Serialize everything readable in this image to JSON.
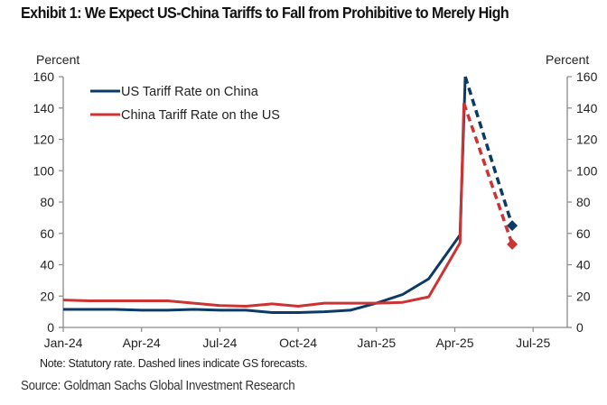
{
  "title": "Exhibit 1: We Expect US-China Tariffs to Fall from Prohibitive to Merely High",
  "note": "Note: Statutory rate. Dashed lines indicate GS forecasts.",
  "source": "Source: Goldman Sachs Global Investment Research",
  "chart_data": {
    "type": "line",
    "title": "Exhibit 1: We Expect US-China Tariffs to Fall from Prohibitive to Merely High",
    "xlabel": "",
    "ylabel": "Percent",
    "ylabel_right": "Percent",
    "ylim": [
      0,
      160
    ],
    "yticks": [
      0,
      20,
      40,
      60,
      80,
      100,
      120,
      140,
      160
    ],
    "xlim_months": [
      0,
      19
    ],
    "xticks": [
      {
        "label": "Jan-24",
        "month": 0
      },
      {
        "label": "Apr-24",
        "month": 3
      },
      {
        "label": "Jul-24",
        "month": 6
      },
      {
        "label": "Oct-24",
        "month": 9
      },
      {
        "label": "Jan-25",
        "month": 12
      },
      {
        "label": "Apr-25",
        "month": 15
      },
      {
        "label": "Jul-25",
        "month": 18
      }
    ],
    "grid": false,
    "legend_position": "top-left",
    "colors": {
      "us": "#0b3a66",
      "china": "#cc3333"
    },
    "series": [
      {
        "name": "US Tariff Rate on China",
        "color": "#0b3a66",
        "actual": [
          [
            0,
            11.5
          ],
          [
            1,
            11.5
          ],
          [
            2,
            11.5
          ],
          [
            3,
            11
          ],
          [
            4,
            11
          ],
          [
            5,
            11.5
          ],
          [
            6,
            11
          ],
          [
            7,
            11
          ],
          [
            8,
            9.5
          ],
          [
            9,
            9.5
          ],
          [
            10,
            10
          ],
          [
            11,
            11
          ],
          [
            12,
            15.5
          ],
          [
            13,
            21
          ],
          [
            14,
            31
          ],
          [
            15.2,
            59
          ],
          [
            15.4,
            160
          ]
        ],
        "forecast": [
          [
            15.4,
            160
          ],
          [
            17.2,
            65
          ]
        ],
        "forecast_marker": "diamond"
      },
      {
        "name": "China Tariff Rate on the US",
        "color": "#cc3333",
        "actual": [
          [
            0,
            17.5
          ],
          [
            1,
            17
          ],
          [
            2,
            17
          ],
          [
            3,
            17
          ],
          [
            4,
            17
          ],
          [
            5,
            15.5
          ],
          [
            6,
            14
          ],
          [
            7,
            13.5
          ],
          [
            8,
            15
          ],
          [
            9,
            13.5
          ],
          [
            10,
            15.5
          ],
          [
            11,
            15.5
          ],
          [
            12,
            15.5
          ],
          [
            13,
            16
          ],
          [
            14,
            19.5
          ],
          [
            15.2,
            54
          ],
          [
            15.35,
            143
          ]
        ],
        "forecast": [
          [
            15.35,
            143
          ],
          [
            17.2,
            53
          ]
        ],
        "forecast_marker": "diamond"
      }
    ],
    "annotations": [
      "Dashed lines indicate GS forecasts"
    ]
  }
}
